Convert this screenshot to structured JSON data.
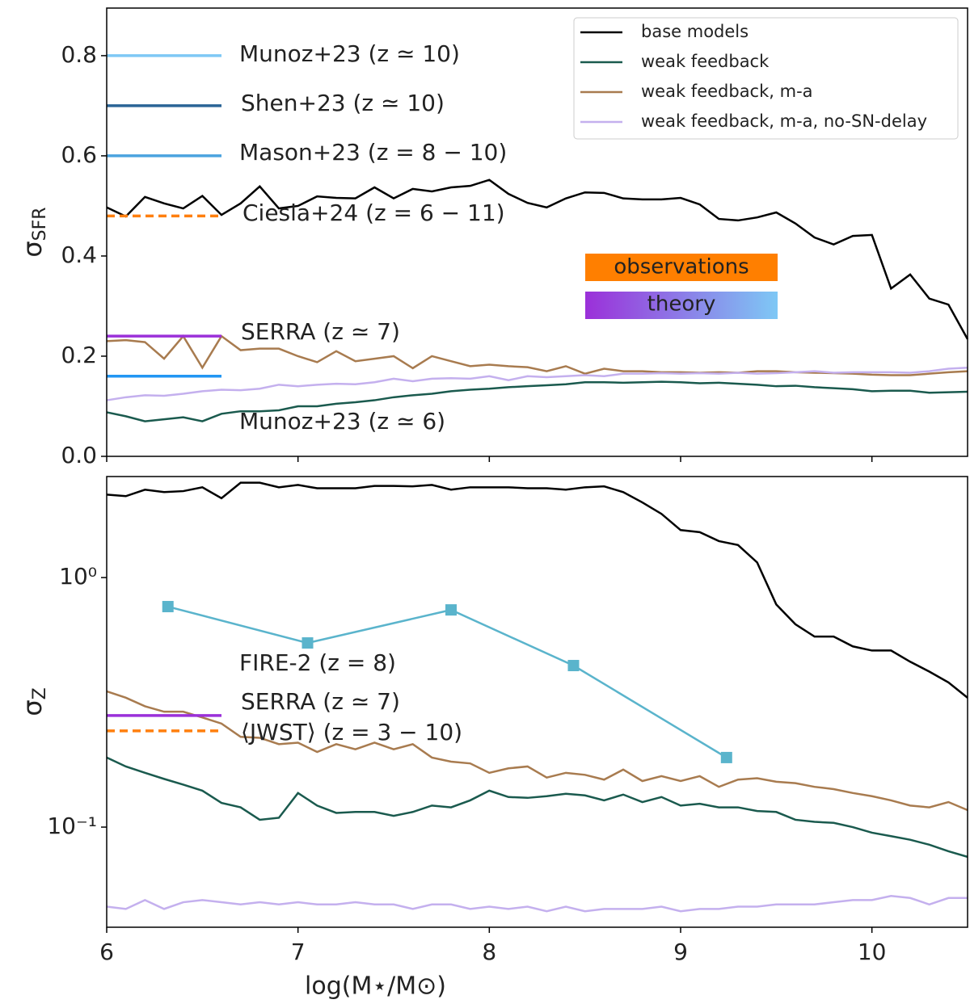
{
  "chart_data": [
    {
      "type": "line",
      "ylabel": "σ",
      "ylabel_subscript": "SFR",
      "xlim": [
        6,
        10.5
      ],
      "xticks": [
        6,
        7,
        8,
        9,
        10
      ],
      "ylim": [
        0,
        0.895
      ],
      "yticks": [
        {
          "value": 0,
          "label": "0.0"
        },
        0.2,
        0.4,
        0.6,
        0.8
      ],
      "log_y": false,
      "legend": "upper right",
      "x": [
        6.0,
        6.1,
        6.2,
        6.3,
        6.4,
        6.5,
        6.6,
        6.7,
        6.8,
        6.9,
        7.0,
        7.1,
        7.2,
        7.3,
        7.4,
        7.5,
        7.6,
        7.7,
        7.8,
        7.9,
        8.0,
        8.1,
        8.2,
        8.3,
        8.4,
        8.5,
        8.6,
        8.7,
        8.8,
        8.9,
        9.0,
        9.1,
        9.2,
        9.3,
        9.4,
        9.5,
        9.6,
        9.7,
        9.8,
        9.9,
        10.0,
        10.1,
        10.2,
        10.3,
        10.4,
        10.5
      ],
      "series": [
        {
          "name": "base models",
          "color": "#000000",
          "values": [
            0.497,
            0.479,
            0.518,
            0.505,
            0.495,
            0.52,
            0.482,
            0.505,
            0.539,
            0.495,
            0.5,
            0.519,
            0.516,
            0.515,
            0.537,
            0.515,
            0.534,
            0.529,
            0.537,
            0.54,
            0.552,
            0.524,
            0.506,
            0.497,
            0.515,
            0.527,
            0.526,
            0.515,
            0.513,
            0.513,
            0.516,
            0.503,
            0.474,
            0.471,
            0.477,
            0.487,
            0.465,
            0.437,
            0.423,
            0.44,
            0.442,
            0.335,
            0.363,
            0.315,
            0.303,
            0.234
          ]
        },
        {
          "name": "weak feedback",
          "color": "#1a5a4e",
          "values": [
            0.088,
            0.08,
            0.07,
            0.074,
            0.078,
            0.07,
            0.085,
            0.09,
            0.09,
            0.092,
            0.1,
            0.1,
            0.105,
            0.108,
            0.112,
            0.118,
            0.122,
            0.125,
            0.13,
            0.133,
            0.135,
            0.138,
            0.14,
            0.142,
            0.144,
            0.148,
            0.148,
            0.147,
            0.148,
            0.149,
            0.148,
            0.146,
            0.147,
            0.145,
            0.143,
            0.14,
            0.141,
            0.138,
            0.136,
            0.134,
            0.13,
            0.131,
            0.131,
            0.127,
            0.128,
            0.129
          ]
        },
        {
          "name": "weak feedback, m-a",
          "color": "#a87b4f",
          "values": [
            0.23,
            0.232,
            0.228,
            0.195,
            0.24,
            0.177,
            0.24,
            0.212,
            0.215,
            0.215,
            0.2,
            0.188,
            0.21,
            0.19,
            0.195,
            0.2,
            0.176,
            0.2,
            0.19,
            0.18,
            0.183,
            0.18,
            0.178,
            0.17,
            0.18,
            0.165,
            0.175,
            0.17,
            0.17,
            0.168,
            0.168,
            0.167,
            0.168,
            0.167,
            0.17,
            0.17,
            0.168,
            0.167,
            0.166,
            0.165,
            0.163,
            0.162,
            0.162,
            0.165,
            0.168,
            0.17
          ]
        },
        {
          "name": "weak feedback, m-a, no-SN-delay",
          "color": "#c4b0ee",
          "values": [
            0.112,
            0.118,
            0.122,
            0.121,
            0.125,
            0.13,
            0.133,
            0.132,
            0.135,
            0.143,
            0.14,
            0.143,
            0.145,
            0.144,
            0.148,
            0.155,
            0.15,
            0.155,
            0.156,
            0.155,
            0.16,
            0.152,
            0.16,
            0.158,
            0.16,
            0.162,
            0.16,
            0.165,
            0.165,
            0.166,
            0.165,
            0.166,
            0.165,
            0.167,
            0.165,
            0.166,
            0.168,
            0.17,
            0.167,
            0.168,
            0.168,
            0.168,
            0.167,
            0.17,
            0.175,
            0.177
          ]
        }
      ],
      "references": [
        {
          "label": "Munoz+23 (z ≃ 10)",
          "color": "#7ec8f5",
          "value": 0.8,
          "x": [
            6,
            6.6
          ],
          "dashed": false
        },
        {
          "label": "Shen+23 (z ≃ 10)",
          "color": "#2a6496",
          "value": 0.7,
          "x": [
            6,
            6.6
          ],
          "dashed": false
        },
        {
          "label": "Mason+23 (z = 8 − 10)",
          "color": "#4aa3df",
          "value": 0.6,
          "x": [
            6,
            6.6
          ],
          "dashed": false
        },
        {
          "label": "Ciesla+24 (z = 6 − 11)",
          "color": "#ff7f0e",
          "value": 0.48,
          "x": [
            6,
            6.6
          ],
          "dashed": true
        },
        {
          "label": "SERRA (z ≃ 7)",
          "color": "#9b30d9",
          "value": 0.24,
          "x": [
            6,
            6.6
          ],
          "dashed": false
        },
        {
          "label": "Munoz+23 (z ≃ 6)",
          "color": "#2196f3",
          "value": 0.16,
          "x": [
            6,
            6.6
          ],
          "dashed": false
        }
      ],
      "annotations": [
        "observations",
        "theory"
      ]
    },
    {
      "type": "line",
      "ylabel": "σ",
      "ylabel_subscript": "Z",
      "xlabel": "log(M⋆/M⊙)",
      "xlim": [
        6,
        10.5
      ],
      "xticks": [
        6,
        7,
        8,
        9,
        10
      ],
      "ylim": [
        0.0397,
        2.54
      ],
      "yticks": [
        {
          "value": 0.1,
          "label": "10⁻¹"
        },
        {
          "value": 1,
          "label": "10⁰"
        }
      ],
      "log_y": true,
      "x": [
        6.0,
        6.1,
        6.2,
        6.3,
        6.4,
        6.5,
        6.6,
        6.7,
        6.8,
        6.9,
        7.0,
        7.1,
        7.2,
        7.3,
        7.4,
        7.5,
        7.6,
        7.7,
        7.8,
        7.9,
        8.0,
        8.1,
        8.2,
        8.3,
        8.4,
        8.5,
        8.6,
        8.7,
        8.8,
        8.9,
        9.0,
        9.1,
        9.2,
        9.3,
        9.4,
        9.5,
        9.6,
        9.7,
        9.8,
        9.9,
        10.0,
        10.1,
        10.2,
        10.3,
        10.4,
        10.5
      ],
      "series": [
        {
          "color": "#000000",
          "values": [
            2.15,
            2.12,
            2.25,
            2.2,
            2.22,
            2.3,
            2.08,
            2.4,
            2.4,
            2.3,
            2.35,
            2.28,
            2.28,
            2.28,
            2.33,
            2.33,
            2.32,
            2.35,
            2.25,
            2.3,
            2.3,
            2.3,
            2.28,
            2.28,
            2.25,
            2.3,
            2.32,
            2.2,
            2.0,
            1.8,
            1.55,
            1.52,
            1.4,
            1.35,
            1.15,
            0.78,
            0.65,
            0.58,
            0.58,
            0.53,
            0.51,
            0.51,
            0.46,
            0.42,
            0.38,
            0.33
          ]
        },
        {
          "color": "#1a5a4e",
          "values": [
            0.19,
            0.175,
            0.165,
            0.156,
            0.148,
            0.14,
            0.125,
            0.12,
            0.107,
            0.109,
            0.137,
            0.122,
            0.114,
            0.115,
            0.115,
            0.111,
            0.115,
            0.122,
            0.12,
            0.128,
            0.14,
            0.132,
            0.131,
            0.133,
            0.136,
            0.134,
            0.128,
            0.135,
            0.126,
            0.132,
            0.122,
            0.124,
            0.12,
            0.12,
            0.116,
            0.115,
            0.107,
            0.105,
            0.104,
            0.1,
            0.095,
            0.092,
            0.089,
            0.085,
            0.08,
            0.076
          ]
        },
        {
          "color": "#a87b4f",
          "values": [
            0.35,
            0.33,
            0.305,
            0.29,
            0.29,
            0.275,
            0.26,
            0.23,
            0.228,
            0.215,
            0.218,
            0.2,
            0.215,
            0.205,
            0.218,
            0.205,
            0.215,
            0.19,
            0.183,
            0.18,
            0.165,
            0.172,
            0.175,
            0.158,
            0.165,
            0.162,
            0.155,
            0.17,
            0.153,
            0.16,
            0.153,
            0.16,
            0.145,
            0.155,
            0.157,
            0.152,
            0.15,
            0.145,
            0.142,
            0.137,
            0.133,
            0.128,
            0.122,
            0.12,
            0.126,
            0.117
          ]
        },
        {
          "color": "#c4b0ee",
          "values": [
            0.048,
            0.047,
            0.051,
            0.047,
            0.05,
            0.051,
            0.05,
            0.049,
            0.05,
            0.049,
            0.05,
            0.049,
            0.049,
            0.05,
            0.049,
            0.049,
            0.047,
            0.049,
            0.049,
            0.047,
            0.048,
            0.047,
            0.048,
            0.046,
            0.048,
            0.046,
            0.047,
            0.047,
            0.047,
            0.048,
            0.046,
            0.047,
            0.047,
            0.048,
            0.048,
            0.049,
            0.049,
            0.049,
            0.05,
            0.051,
            0.051,
            0.053,
            0.052,
            0.049,
            0.052,
            0.052
          ]
        }
      ],
      "points": {
        "name": "FIRE-2 (z = 8)",
        "color": "#5ab4cc",
        "x": [
          6.32,
          7.05,
          7.8,
          8.44,
          9.24
        ],
        "values": [
          0.765,
          0.547,
          0.742,
          0.444,
          0.19
        ]
      },
      "references": [
        {
          "label": "SERRA (z ≃ 7)",
          "color": "#9b30d9",
          "value": 0.28,
          "x": [
            6,
            6.6
          ],
          "dashed": false
        },
        {
          "label": "⟨JWST⟩ (z = 3 − 10)",
          "color": "#ff7f0e",
          "value": 0.243,
          "x": [
            6,
            6.6
          ],
          "dashed": true
        }
      ]
    }
  ]
}
